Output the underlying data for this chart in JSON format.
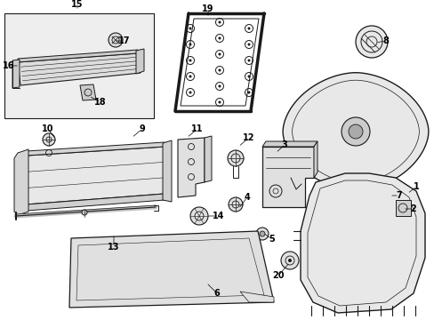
{
  "bg_color": "#ffffff",
  "line_color": "#1a1a1a",
  "parts_label": [
    [
      "1",
      458,
      218,
      468,
      210
    ],
    [
      "2",
      453,
      235,
      465,
      235
    ],
    [
      "3",
      310,
      172,
      320,
      163
    ],
    [
      "4",
      268,
      235,
      278,
      222
    ],
    [
      "5",
      296,
      262,
      306,
      269
    ],
    [
      "6",
      232,
      318,
      244,
      330
    ],
    [
      "7",
      438,
      220,
      449,
      220
    ],
    [
      "8",
      422,
      48,
      434,
      46
    ],
    [
      "9",
      148,
      155,
      160,
      145
    ],
    [
      "10",
      63,
      157,
      54,
      145
    ],
    [
      "11",
      210,
      155,
      222,
      145
    ],
    [
      "12",
      268,
      165,
      280,
      155
    ],
    [
      "13",
      128,
      263,
      128,
      278
    ],
    [
      "14",
      232,
      243,
      246,
      243
    ],
    [
      "15",
      87,
      12,
      87,
      5
    ],
    [
      "16",
      22,
      74,
      10,
      74
    ],
    [
      "17",
      128,
      46,
      140,
      46
    ],
    [
      "18",
      100,
      108,
      113,
      115
    ],
    [
      "19",
      234,
      20,
      234,
      10
    ],
    [
      "20",
      326,
      295,
      313,
      310
    ]
  ]
}
